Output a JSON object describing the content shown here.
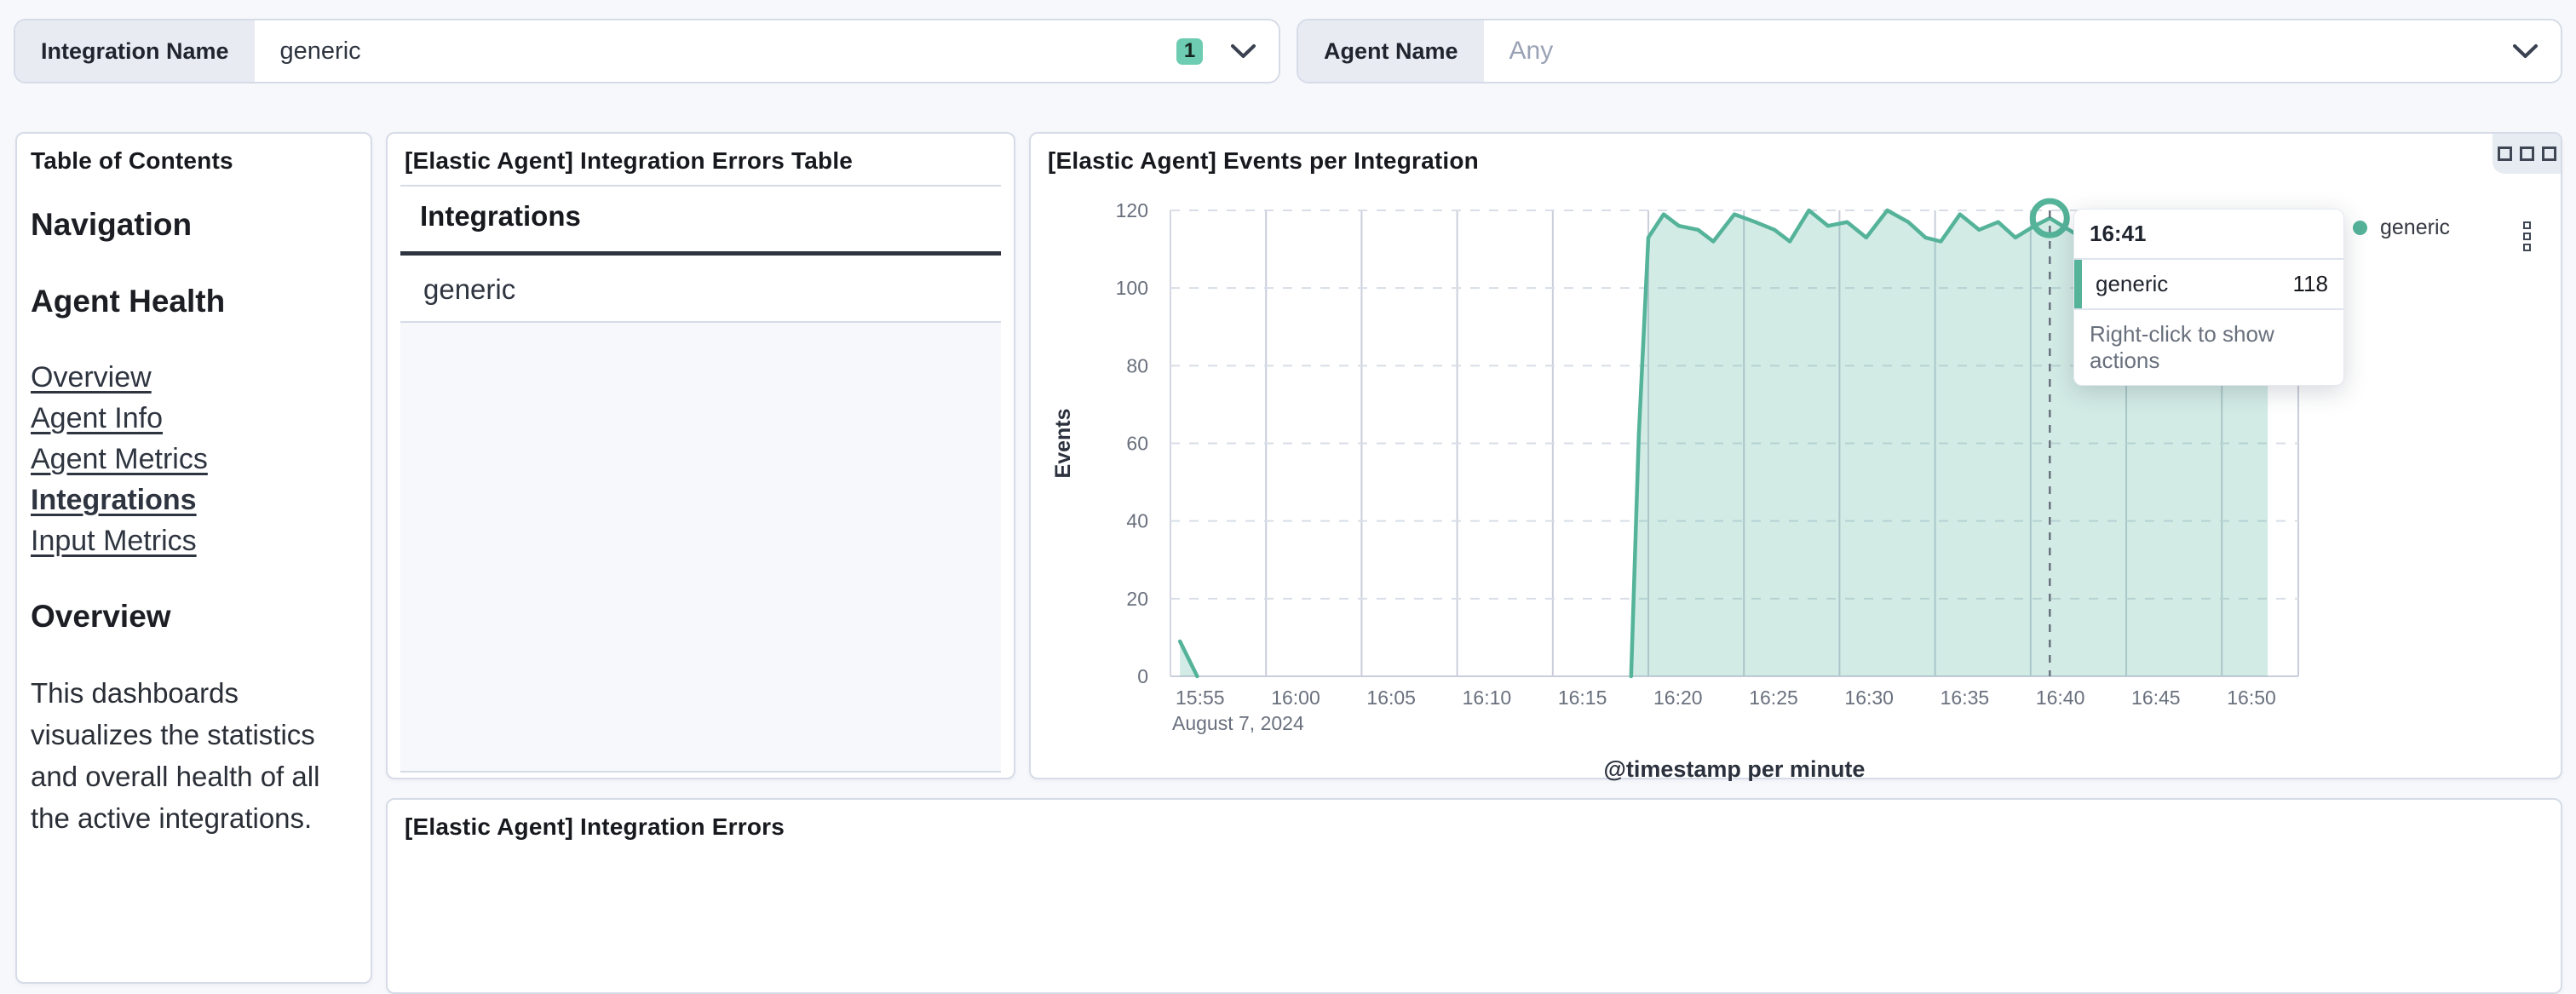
{
  "filters": {
    "integration": {
      "label": "Integration Name",
      "value": "generic",
      "badge_count": "1"
    },
    "agent": {
      "label": "Agent Name",
      "value": "Any"
    }
  },
  "toc": {
    "panel_title": "Table of Contents",
    "heading_navigation": "Navigation",
    "heading_agent_health": "Agent Health",
    "links": [
      {
        "label": "Overview",
        "active": false
      },
      {
        "label": "Agent Info",
        "active": false
      },
      {
        "label": "Agent Metrics",
        "active": false
      },
      {
        "label": "Integrations",
        "active": true
      },
      {
        "label": "Input Metrics",
        "active": false
      }
    ],
    "heading_overview": "Overview",
    "paragraph": "This dashboards visualizes the statistics and overall health of all the active integrations."
  },
  "errors_table_panel": {
    "title": "[Elastic Agent] Integration Errors Table",
    "column_header": "Integrations",
    "rows": [
      "generic"
    ]
  },
  "events_panel": {
    "title": "[Elastic Agent] Events per Integration",
    "legend_label": "generic",
    "tooltip": {
      "time": "16:41",
      "series": "generic",
      "value": "118",
      "footer": "Right-click to show actions"
    }
  },
  "errors_bottom_panel": {
    "title": "[Elastic Agent] Integration Errors"
  },
  "colors": {
    "accent_teal": "#54B399",
    "badge_teal": "#6DCCB1",
    "panel_border": "#D6DCE7",
    "text": "#343741",
    "muted": "#69707D"
  },
  "chart_data": {
    "type": "area",
    "title": "[Elastic Agent] Events per Integration",
    "xlabel": "@timestamp per minute",
    "ylabel": "Events",
    "date_label": "August 7, 2024",
    "x_ticks": [
      "15:55",
      "16:00",
      "16:05",
      "16:10",
      "16:15",
      "16:20",
      "16:25",
      "16:30",
      "16:35",
      "16:40",
      "16:45",
      "16:50"
    ],
    "x_tick_minutes": [
      0,
      5,
      10,
      15,
      20,
      25,
      30,
      35,
      40,
      45,
      50,
      55
    ],
    "x_domain_minutes": [
      0,
      59
    ],
    "y_ticks": [
      0,
      20,
      40,
      60,
      80,
      100,
      120
    ],
    "ylim": [
      0,
      120
    ],
    "grid": {
      "horizontal": "dashed",
      "vertical": "solid"
    },
    "legend_position": "right",
    "series": [
      {
        "name": "generic",
        "color": "#54B399",
        "fill_opacity": 0.26,
        "segments": [
          {
            "points": [
              [
                0.5,
                9
              ],
              [
                1.4,
                0
              ]
            ]
          },
          {
            "points": [
              [
                24.1,
                0
              ],
              [
                24.5,
                62
              ],
              [
                25,
                113
              ],
              [
                25.8,
                119
              ],
              [
                26.6,
                116
              ],
              [
                27.6,
                115
              ],
              [
                28.4,
                112
              ],
              [
                29.5,
                119
              ],
              [
                30.6,
                117
              ],
              [
                31.6,
                115
              ],
              [
                32.4,
                112
              ],
              [
                33.4,
                120
              ],
              [
                34.4,
                116
              ],
              [
                35.4,
                117
              ],
              [
                36.4,
                113
              ],
              [
                37.5,
                120
              ],
              [
                38.6,
                117
              ],
              [
                39.5,
                113
              ],
              [
                40.3,
                112
              ],
              [
                41.3,
                119
              ],
              [
                42.3,
                115
              ],
              [
                43.3,
                117
              ],
              [
                44.2,
                113
              ],
              [
                45.2,
                116
              ],
              [
                46,
                118
              ],
              [
                47,
                115
              ],
              [
                48,
                112
              ],
              [
                49,
                117
              ],
              [
                50.2,
                119
              ],
              [
                51.2,
                113
              ],
              [
                52.2,
                118
              ],
              [
                53.2,
                115
              ],
              [
                54.2,
                119
              ],
              [
                55.4,
                117
              ],
              [
                56.4,
                113
              ],
              [
                57.4,
                112
              ]
            ]
          }
        ]
      }
    ],
    "hover": {
      "minute": 46,
      "time": "16:41",
      "series": "generic",
      "value": 118
    }
  }
}
